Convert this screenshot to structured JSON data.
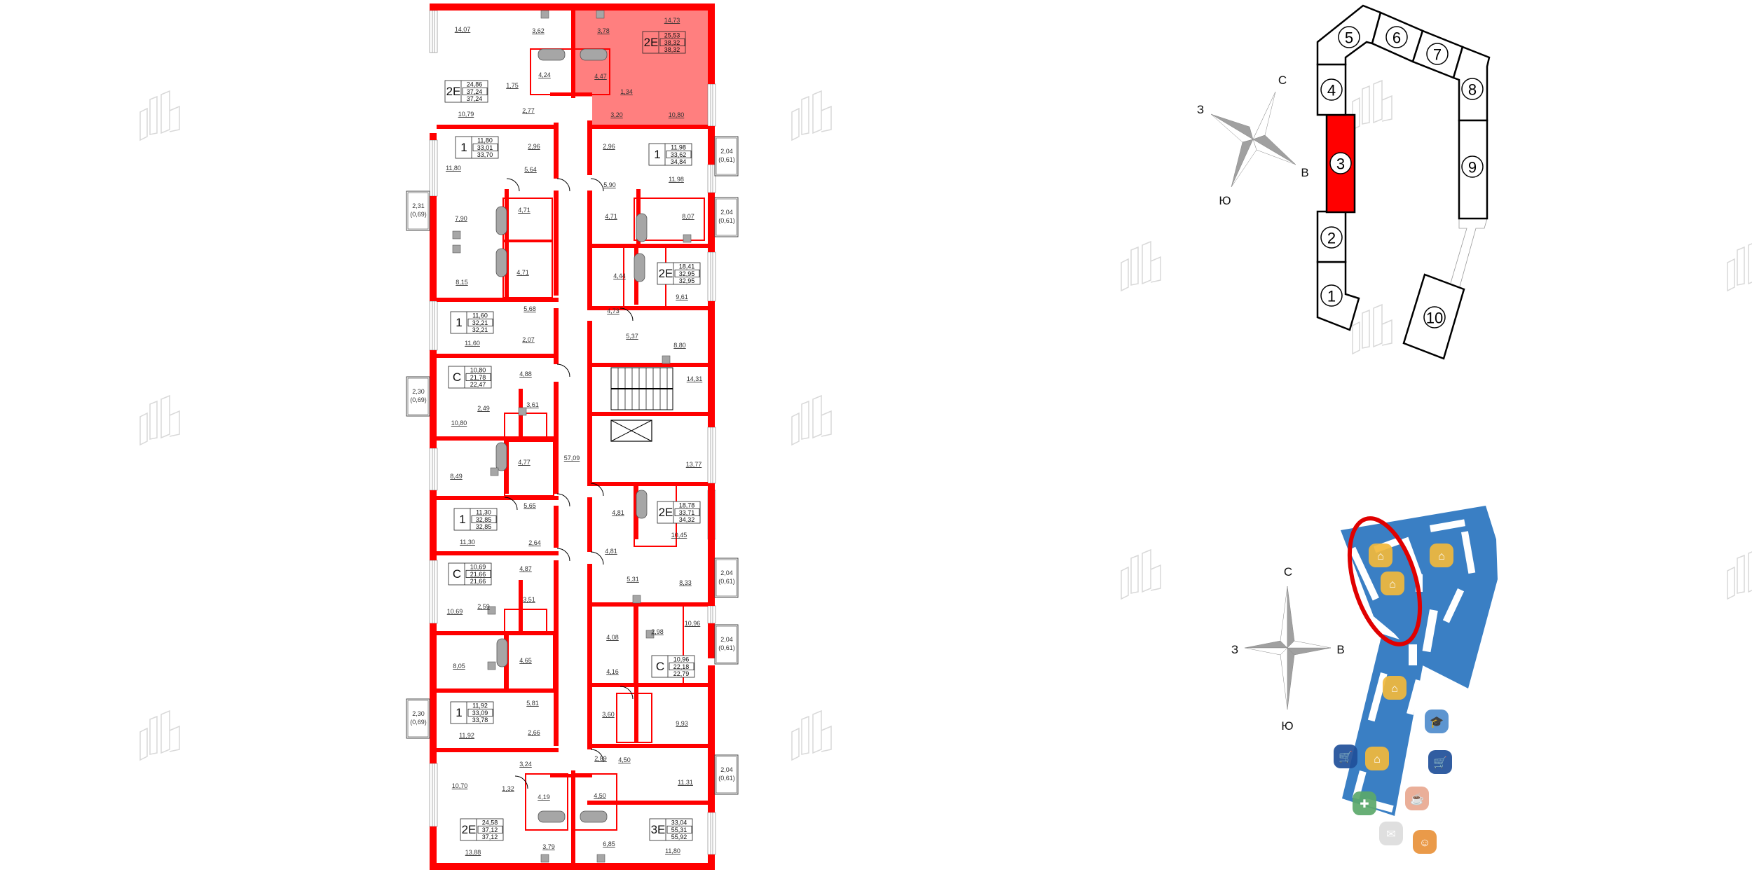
{
  "colors": {
    "wall": "#ff0000",
    "selected_fill": "#ff8080",
    "map_blue": "#3a7fc4",
    "marker": "#e00000",
    "fixture": "#a6a6a6"
  },
  "floor_plan": {
    "rooms": [
      "14,07",
      "3,62",
      "3,78",
      "14,73",
      "4,24",
      "1,75",
      "4,47",
      "1,34",
      "2,77",
      "10,79",
      "3,20",
      "10,80",
      "2,96",
      "2,96",
      "11,80",
      "5,64",
      "11,98",
      "7,90",
      "4,71",
      "5,90",
      "4,71",
      "8,07",
      "8,15",
      "4,71",
      "4,44",
      "9,61",
      "5,68",
      "4,73",
      "2,07",
      "11,60",
      "5,37",
      "8,80",
      "4,88",
      "14,31",
      "2,49",
      "3,61",
      "10,80",
      "57,09",
      "4,77",
      "13,77",
      "8,49",
      "5,65",
      "4,81",
      "10,45",
      "11,30",
      "2,64",
      "4,81",
      "4,87",
      "5,31",
      "8,33",
      "3,51",
      "2,59",
      "10,69",
      "10,96",
      "2,98",
      "4,08",
      "8,05",
      "4,65",
      "4,16",
      "5,81",
      "3,60",
      "9,93",
      "11,92",
      "2,66",
      "2,89",
      "4,50",
      "3,24",
      "10,70",
      "11,31",
      "1,32",
      "4,19",
      "4,50",
      "3,79",
      "6,85",
      "13,88",
      "11,80"
    ],
    "apartments": [
      {
        "type": "2Е",
        "living": "25,53",
        "total": "38,32",
        "total_with_balcony": "38,32",
        "selected": true
      },
      {
        "type": "2Е",
        "living": "24,86",
        "total": "37,24",
        "total_with_balcony": "37,24"
      },
      {
        "type": "1",
        "living": "11,80",
        "total": "33,01",
        "total_with_balcony": "33,70"
      },
      {
        "type": "1",
        "living": "11,98",
        "total": "33,62",
        "total_with_balcony": "34,84"
      },
      {
        "type": "2Е",
        "living": "18,41",
        "total": "32,95",
        "total_with_balcony": "32,95"
      },
      {
        "type": "1",
        "living": "11,60",
        "total": "32,21",
        "total_with_balcony": "32,21"
      },
      {
        "type": "С",
        "living": "10,80",
        "total": "21,78",
        "total_with_balcony": "22,47"
      },
      {
        "type": "2Е",
        "living": "18,78",
        "total": "33,71",
        "total_with_balcony": "34,32"
      },
      {
        "type": "1",
        "living": "11,30",
        "total": "32,85",
        "total_with_balcony": "32,85"
      },
      {
        "type": "С",
        "living": "10,69",
        "total": "21,66",
        "total_with_balcony": "21,66"
      },
      {
        "type": "С",
        "living": "10,96",
        "total": "22,18",
        "total_with_balcony": "22,79"
      },
      {
        "type": "1",
        "living": "11,92",
        "total": "33,09",
        "total_with_balcony": "33,78"
      },
      {
        "type": "2Е",
        "living": "24,58",
        "total": "37,12",
        "total_with_balcony": "37,12"
      },
      {
        "type": "3Е",
        "living": "33,04",
        "total": "55,31",
        "total_with_balcony": "55,92"
      }
    ],
    "balconies": [
      {
        "area": "2,31",
        "coef": "(0,69)"
      },
      {
        "area": "2,30",
        "coef": "(0,69)"
      },
      {
        "area": "2,30",
        "coef": "(0,69)"
      },
      {
        "area": "2,04",
        "coef": "(0,61)"
      },
      {
        "area": "2,04",
        "coef": "(0,61)"
      },
      {
        "area": "2,04",
        "coef": "(0,61)"
      },
      {
        "area": "2,04",
        "coef": "(0,61)"
      },
      {
        "area": "2,04",
        "coef": "(0,61)"
      }
    ]
  },
  "building_scheme": {
    "sections": [
      "1",
      "2",
      "3",
      "4",
      "5",
      "6",
      "7",
      "8",
      "9",
      "10"
    ],
    "selected_section": "3"
  },
  "compass_rotated": {
    "north": "С",
    "west": "З",
    "east": "В",
    "south": "Ю"
  },
  "compass_map": {
    "north": "С",
    "west": "З",
    "east": "В",
    "south": "Ю"
  },
  "location_map": {
    "icons": [
      "building-icon",
      "building-icon",
      "building-icon",
      "building-icon",
      "building-icon",
      "cart-icon",
      "cart-icon",
      "school-icon",
      "pharmacy-icon",
      "cafe-icon",
      "mail-icon",
      "fitness-icon"
    ]
  }
}
